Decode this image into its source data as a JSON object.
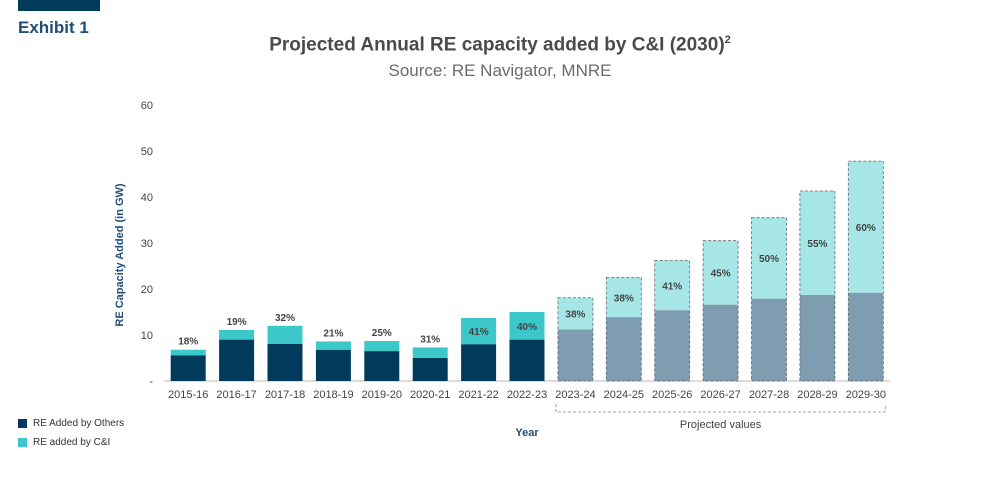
{
  "exhibit": {
    "label": "Exhibit 1"
  },
  "colors": {
    "others": "#003b5c",
    "ci": "#3cc8c8",
    "others_projected": "#7f9db0",
    "ci_projected": "#a6e6e6"
  },
  "legend": {
    "others_label": "RE Added by Others",
    "ci_label": "RE added by C&I"
  },
  "chart_data": {
    "type": "bar",
    "stacked": true,
    "title": "Projected Annual RE capacity added by C&I (2030)",
    "title_superscript": "2",
    "subtitle": "Source: RE Navigator, MNRE",
    "xlabel": "Year",
    "ylabel": "RE Capacity Added (in GW)",
    "ylim": [
      0,
      60
    ],
    "yticks": [
      0,
      10,
      20,
      30,
      40,
      50,
      60
    ],
    "ytick_labels": [
      "-",
      "10",
      "20",
      "30",
      "40",
      "50",
      "60"
    ],
    "grid": false,
    "categories": [
      "2015-16",
      "2016-17",
      "2017-18",
      "2018-19",
      "2019-20",
      "2020-21",
      "2021-22",
      "2022-23",
      "2023-24",
      "2024-25",
      "2025-26",
      "2026-27",
      "2027-28",
      "2028-29",
      "2029-30"
    ],
    "series": [
      {
        "name": "RE Added by Others",
        "values": [
          5.6,
          9.0,
          8.1,
          6.8,
          6.5,
          5.0,
          8.0,
          9.0,
          11.2,
          13.9,
          15.4,
          16.6,
          17.9,
          18.7,
          19.2
        ]
      },
      {
        "name": "RE added by C&I",
        "values": [
          1.2,
          2.1,
          3.9,
          1.8,
          2.2,
          2.3,
          5.7,
          6.0,
          6.9,
          8.6,
          10.8,
          13.9,
          17.6,
          22.6,
          28.6
        ]
      }
    ],
    "share_labels": [
      "18%",
      "19%",
      "32%",
      "21%",
      "25%",
      "31%",
      "41%",
      "40%",
      "38%",
      "38%",
      "41%",
      "45%",
      "50%",
      "55%",
      "60%"
    ],
    "projected_from_index": 8,
    "projected_label": "Projected values"
  }
}
